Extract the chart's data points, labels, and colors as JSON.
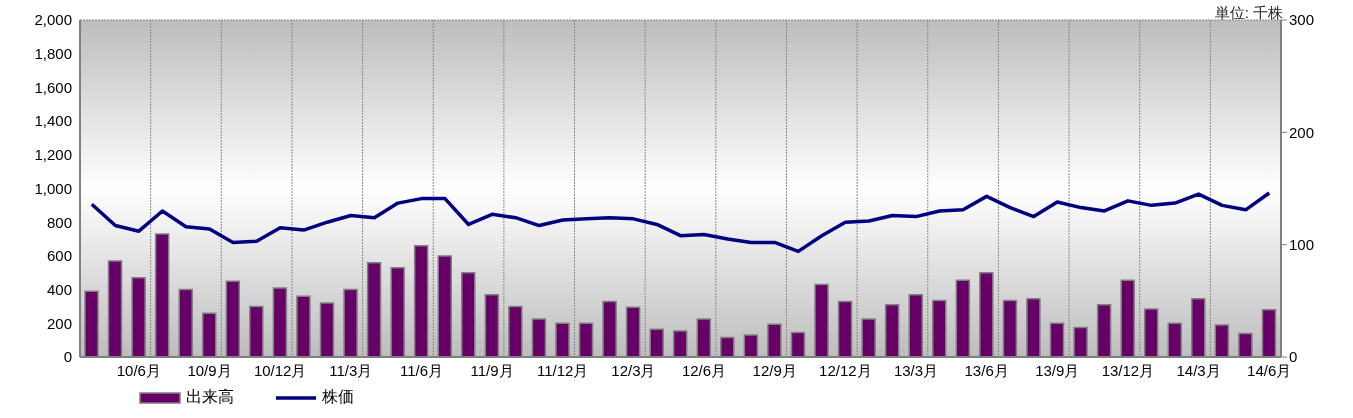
{
  "chart_data": {
    "type": "bar",
    "annotations": [
      "単位: 千株"
    ],
    "categories": [
      null,
      null,
      "10/6月",
      null,
      null,
      "10/9月",
      null,
      null,
      "10/12月",
      null,
      null,
      "11/3月",
      null,
      null,
      "11/6月",
      null,
      null,
      "11/9月",
      null,
      null,
      "11/12月",
      null,
      null,
      "12/3月",
      null,
      null,
      "12/6月",
      null,
      null,
      "12/9月",
      null,
      null,
      "12/12月",
      null,
      null,
      "13/3月",
      null,
      null,
      "13/6月",
      null,
      null,
      "13/9月",
      null,
      null,
      "13/12月",
      null,
      null,
      "14/3月",
      null,
      null,
      "14/6月"
    ],
    "series": [
      {
        "name": "出来高",
        "type": "bar",
        "color": "#660066",
        "values": [
          390,
          570,
          470,
          730,
          400,
          260,
          450,
          300,
          410,
          360,
          320,
          400,
          560,
          530,
          660,
          600,
          500,
          370,
          300,
          225,
          200,
          200,
          330,
          295,
          165,
          155,
          225,
          115,
          130,
          195,
          145,
          430,
          330,
          225,
          310,
          370,
          335,
          455,
          500,
          335,
          345,
          200,
          175,
          310,
          455,
          285,
          200,
          345,
          190,
          140,
          280
        ]
      },
      {
        "name": "株価",
        "type": "line",
        "axis": "y2",
        "color": "#000080",
        "values": [
          136,
          117,
          112,
          130,
          116,
          114,
          102,
          103,
          115,
          113,
          120,
          126,
          124,
          137,
          141,
          141,
          118,
          127,
          124,
          117,
          122,
          123,
          124,
          123,
          118,
          108,
          109,
          105,
          102,
          102,
          94,
          108,
          120,
          121,
          126,
          125,
          130,
          131,
          143,
          133,
          125,
          138,
          133,
          130,
          139,
          135,
          137,
          145,
          135,
          131,
          146
        ]
      }
    ],
    "ylim": [
      0,
      2000
    ],
    "yticks": [
      0,
      200,
      400,
      600,
      800,
      {
        "value": 1000,
        "label": "1,000"
      },
      {
        "value": 1200,
        "label": "1,200"
      },
      {
        "value": 1400,
        "label": "1,400"
      },
      {
        "value": 1600,
        "label": "1,600"
      },
      {
        "value": 1800,
        "label": "1,800"
      },
      {
        "value": 2000,
        "label": "2,000"
      }
    ],
    "y2lim": [
      0,
      300
    ],
    "y2ticks": [
      0,
      100,
      200,
      300
    ],
    "grid": true,
    "legend": "bottom left"
  }
}
